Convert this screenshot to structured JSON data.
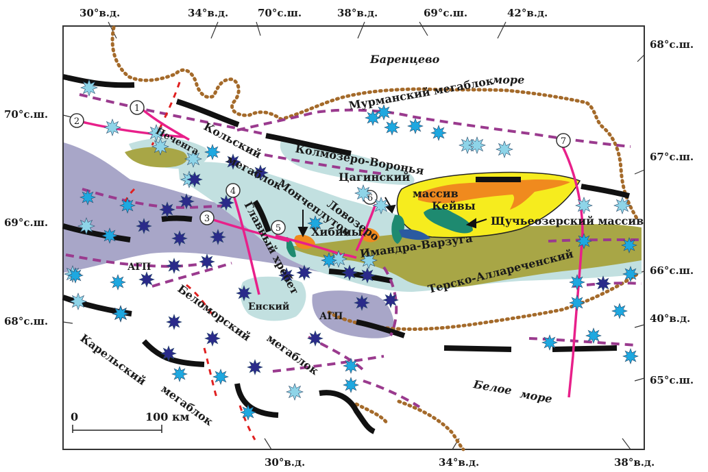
{
  "coords": {
    "top": [
      "30°в.д.",
      "34°в.д.",
      "70°с.ш.",
      "38°в.д.",
      "69°с.ш.",
      "42°в.д."
    ],
    "right": [
      "68°с.ш.",
      "67°с.ш.",
      "66°с.ш.",
      "40°в.д.",
      "65°с.ш."
    ],
    "left": [
      "70°с.ш.",
      "69°с.ш.",
      "68°с.ш."
    ],
    "bottom": [
      "30°в.д.",
      "34°в.д.",
      "38°в.д."
    ]
  },
  "labels": {
    "barents_1": "Баренцево",
    "barents_2": "море",
    "murmansk": "Мурманский мегаблок",
    "kola_1": "Кольский",
    "kola_2": "мегаблок",
    "kolmozero": "Колмозеро-Воронья",
    "tsaginsky": "Цагинский",
    "massiv": "массив",
    "keivy": "Кейвы",
    "shchuch": "Щучьеозерский массив",
    "pechenga": "Печенга",
    "monche_1": "Мончеплутон",
    "lovozero": "Ловозеро",
    "khibiny": "Хибины",
    "imandra": "Имандра-Варзуга",
    "tersko": "Терско-Аллареченский",
    "glavny": "Главный хребет",
    "amp": "АГП",
    "agp": "АГП",
    "ensky": "Енский",
    "belomor_1": "Беломорский",
    "belomor_2": "мегаблок",
    "karel_1": "Карельский",
    "karel_2": "мегаблок",
    "white_1": "Белое",
    "white_2": "море"
  },
  "profile_numbers": [
    "1",
    "2",
    "3",
    "4",
    "5",
    "6",
    "7"
  ],
  "scale": {
    "zero": "0",
    "length": "100 км"
  },
  "colors": {
    "lilac_zone": "#a8a6c8",
    "pale_cyan": "#c2e0e0",
    "olive": "#a8a646",
    "yellow": "#f6ec1e",
    "orange": "#f08a1e",
    "teal": "#1e8a70",
    "magenta_profile": "#e8208a",
    "purple_dash": "#9a3a8e",
    "fault_black": "#111111",
    "coast_brown": "#a46a2a",
    "star_light": "#8ed4e8",
    "star_cyan": "#1ea8e0",
    "star_dark": "#2a2a8a"
  },
  "icons": [
    "star-marker-light",
    "star-marker-cyan",
    "star-marker-dark",
    "arrow-pointer"
  ]
}
